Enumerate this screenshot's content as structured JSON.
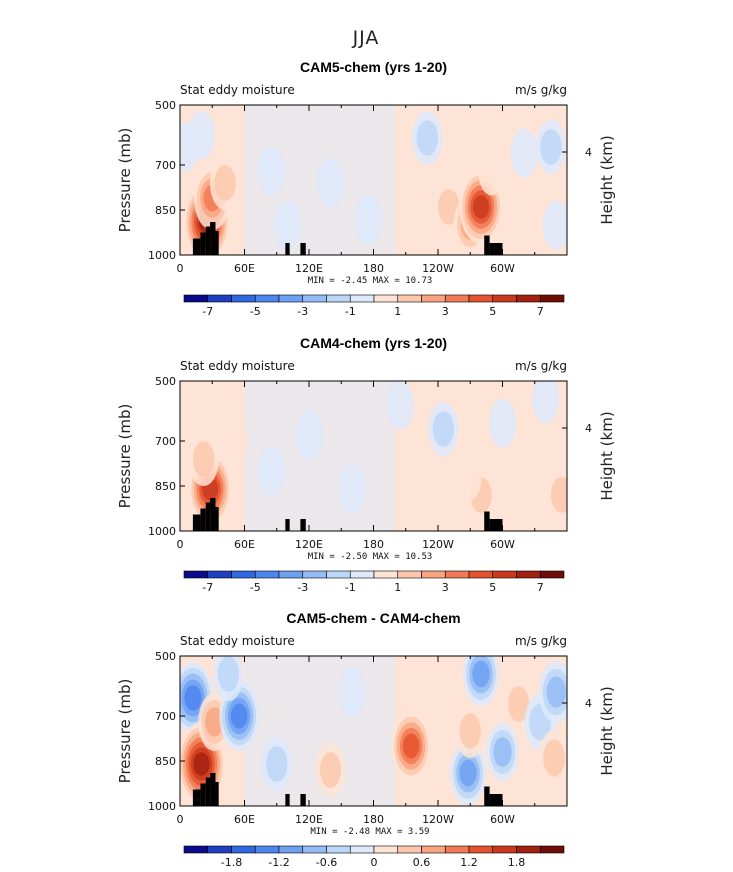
{
  "figure_title": "JJA",
  "colors": {
    "negative_scale": [
      "#0a0a8c",
      "#1f3fbf",
      "#2f68e0",
      "#4d86ee",
      "#6ea0f2",
      "#94bbf5",
      "#bcd6f7",
      "#dde9fb"
    ],
    "positive_scale": [
      "#fde4d6",
      "#fcc8ad",
      "#f9a480",
      "#f17a55",
      "#e4532f",
      "#c93a1d",
      "#a3210f",
      "#6e0c05"
    ]
  },
  "chart_data": [
    {
      "type": "contour",
      "title": "CAM5-chem (yrs 1-20)",
      "left_label": "Stat eddy moisture",
      "right_label": "m/s g/kg",
      "xlabel": "",
      "ylabel": "Pressure (mb)",
      "y2label": "Height (km)",
      "x_ticks": [
        "0",
        "60E",
        "120E",
        "180",
        "120W",
        "60W"
      ],
      "x_tick_values": [
        0,
        60,
        120,
        180,
        240,
        300
      ],
      "xlim": [
        0,
        360
      ],
      "y_ticks": [
        "500",
        "700",
        "850",
        "1000"
      ],
      "y_tick_values": [
        500,
        700,
        850,
        1000
      ],
      "ylim": [
        1000,
        500
      ],
      "y2_ticks": [
        "4"
      ],
      "stats": "MIN =   -2.45   MAX =   10.73",
      "colorbar_labels": [
        "-7",
        "-5",
        "-3",
        "-1",
        "1",
        "3",
        "5",
        "7"
      ],
      "features": [
        {
          "lon": 25,
          "p": 890,
          "value": 7
        },
        {
          "lon": 30,
          "p": 810,
          "value": 4
        },
        {
          "lon": 42,
          "p": 760,
          "value": 2
        },
        {
          "lon": 20,
          "p": 600,
          "value": -1
        },
        {
          "lon": 5,
          "p": 640,
          "value": -1
        },
        {
          "lon": 85,
          "p": 720,
          "value": -1
        },
        {
          "lon": 100,
          "p": 900,
          "value": -1
        },
        {
          "lon": 140,
          "p": 760,
          "value": -1
        },
        {
          "lon": 175,
          "p": 880,
          "value": -1
        },
        {
          "lon": 230,
          "p": 610,
          "value": -2
        },
        {
          "lon": 250,
          "p": 840,
          "value": 2
        },
        {
          "lon": 270,
          "p": 900,
          "value": 3
        },
        {
          "lon": 280,
          "p": 840,
          "value": 6
        },
        {
          "lon": 290,
          "p": 720,
          "value": 1
        },
        {
          "lon": 320,
          "p": 660,
          "value": -1
        },
        {
          "lon": 345,
          "p": 640,
          "value": -2
        },
        {
          "lon": 350,
          "p": 900,
          "value": -1
        }
      ],
      "topography": [
        [
          12,
          945
        ],
        [
          19,
          945
        ],
        [
          19,
          925
        ],
        [
          24,
          925
        ],
        [
          24,
          905
        ],
        [
          28,
          905
        ],
        [
          28,
          890
        ],
        [
          33,
          890
        ],
        [
          33,
          920
        ],
        [
          36,
          920
        ],
        [
          36,
          960
        ],
        [
          98,
          965
        ],
        [
          98,
          960
        ],
        [
          102,
          960
        ],
        [
          102,
          965
        ],
        [
          112,
          965
        ],
        [
          112,
          960
        ],
        [
          117,
          960
        ],
        [
          117,
          965
        ],
        [
          283,
          935
        ],
        [
          283,
          950
        ],
        [
          288,
          950
        ],
        [
          288,
          965
        ],
        [
          300,
          965
        ]
      ]
    },
    {
      "type": "contour",
      "title": "CAM4-chem (yrs 1-20)",
      "left_label": "Stat eddy moisture",
      "right_label": "m/s g/kg",
      "xlabel": "",
      "ylabel": "Pressure (mb)",
      "y2label": "Height (km)",
      "x_ticks": [
        "0",
        "60E",
        "120E",
        "180",
        "120W",
        "60W"
      ],
      "x_tick_values": [
        0,
        60,
        120,
        180,
        240,
        300
      ],
      "xlim": [
        0,
        360
      ],
      "y_ticks": [
        "500",
        "700",
        "850",
        "1000"
      ],
      "y_tick_values": [
        500,
        700,
        850,
        1000
      ],
      "ylim": [
        1000,
        500
      ],
      "y2_ticks": [
        "4"
      ],
      "stats": "MIN =   -2.50   MAX =   10.53",
      "colorbar_labels": [
        "-7",
        "-5",
        "-3",
        "-1",
        "1",
        "3",
        "5",
        "7"
      ],
      "features": [
        {
          "lon": 28,
          "p": 860,
          "value": 6
        },
        {
          "lon": 22,
          "p": 760,
          "value": 2
        },
        {
          "lon": 50,
          "p": 700,
          "value": 1
        },
        {
          "lon": 85,
          "p": 800,
          "value": -1
        },
        {
          "lon": 120,
          "p": 680,
          "value": -1
        },
        {
          "lon": 160,
          "p": 860,
          "value": -1
        },
        {
          "lon": 205,
          "p": 580,
          "value": -1
        },
        {
          "lon": 245,
          "p": 660,
          "value": -2
        },
        {
          "lon": 280,
          "p": 880,
          "value": 2
        },
        {
          "lon": 268,
          "p": 820,
          "value": 1
        },
        {
          "lon": 300,
          "p": 640,
          "value": -1
        },
        {
          "lon": 340,
          "p": 560,
          "value": -1
        },
        {
          "lon": 355,
          "p": 880,
          "value": 2
        }
      ],
      "topography": [
        [
          12,
          945
        ],
        [
          19,
          945
        ],
        [
          19,
          925
        ],
        [
          24,
          925
        ],
        [
          24,
          905
        ],
        [
          28,
          905
        ],
        [
          28,
          890
        ],
        [
          33,
          890
        ],
        [
          33,
          920
        ],
        [
          36,
          920
        ],
        [
          36,
          960
        ],
        [
          98,
          965
        ],
        [
          98,
          960
        ],
        [
          102,
          960
        ],
        [
          102,
          965
        ],
        [
          112,
          965
        ],
        [
          112,
          960
        ],
        [
          117,
          960
        ],
        [
          117,
          965
        ],
        [
          283,
          935
        ],
        [
          283,
          950
        ],
        [
          288,
          950
        ],
        [
          288,
          965
        ],
        [
          300,
          965
        ]
      ]
    },
    {
      "type": "contour",
      "title": "CAM5-chem - CAM4-chem",
      "left_label": "Stat eddy moisture",
      "right_label": "m/s g/kg",
      "xlabel": "",
      "ylabel": "Pressure (mb)",
      "y2label": "Height (km)",
      "x_ticks": [
        "0",
        "60E",
        "120E",
        "180",
        "120W",
        "60W"
      ],
      "x_tick_values": [
        0,
        60,
        120,
        180,
        240,
        300
      ],
      "xlim": [
        0,
        360
      ],
      "y_ticks": [
        "500",
        "700",
        "850",
        "1000"
      ],
      "y_tick_values": [
        500,
        700,
        850,
        1000
      ],
      "ylim": [
        1000,
        500
      ],
      "y2_ticks": [
        "4"
      ],
      "stats": "MIN =   -2.48   MAX =   3.59",
      "colorbar_labels": [
        "-1.8",
        "-1.2",
        "-0.6",
        "0",
        "0.6",
        "1.2",
        "1.8"
      ],
      "features": [
        {
          "lon": 12,
          "p": 640,
          "value": -1.4
        },
        {
          "lon": 20,
          "p": 860,
          "value": 2.0
        },
        {
          "lon": 32,
          "p": 720,
          "value": 0.7
        },
        {
          "lon": 55,
          "p": 700,
          "value": -1.3
        },
        {
          "lon": 45,
          "p": 560,
          "value": -0.5
        },
        {
          "lon": 90,
          "p": 860,
          "value": -0.5
        },
        {
          "lon": 140,
          "p": 880,
          "value": 0.5
        },
        {
          "lon": 160,
          "p": 620,
          "value": -0.3
        },
        {
          "lon": 215,
          "p": 800,
          "value": 1.3
        },
        {
          "lon": 230,
          "p": 640,
          "value": 0.4
        },
        {
          "lon": 268,
          "p": 890,
          "value": -1.0
        },
        {
          "lon": 270,
          "p": 750,
          "value": 0.5
        },
        {
          "lon": 280,
          "p": 560,
          "value": -1.0
        },
        {
          "lon": 300,
          "p": 820,
          "value": -0.7
        },
        {
          "lon": 315,
          "p": 660,
          "value": 0.5
        },
        {
          "lon": 335,
          "p": 720,
          "value": -0.6
        },
        {
          "lon": 350,
          "p": 620,
          "value": -0.9
        },
        {
          "lon": 348,
          "p": 840,
          "value": 0.6
        }
      ],
      "topography": [
        [
          12,
          945
        ],
        [
          19,
          945
        ],
        [
          19,
          925
        ],
        [
          24,
          925
        ],
        [
          24,
          905
        ],
        [
          28,
          905
        ],
        [
          28,
          890
        ],
        [
          33,
          890
        ],
        [
          33,
          920
        ],
        [
          36,
          920
        ],
        [
          36,
          960
        ],
        [
          98,
          965
        ],
        [
          98,
          960
        ],
        [
          102,
          960
        ],
        [
          102,
          965
        ],
        [
          112,
          965
        ],
        [
          112,
          960
        ],
        [
          117,
          960
        ],
        [
          117,
          965
        ],
        [
          283,
          935
        ],
        [
          283,
          950
        ],
        [
          288,
          950
        ],
        [
          288,
          965
        ],
        [
          300,
          965
        ]
      ]
    }
  ]
}
